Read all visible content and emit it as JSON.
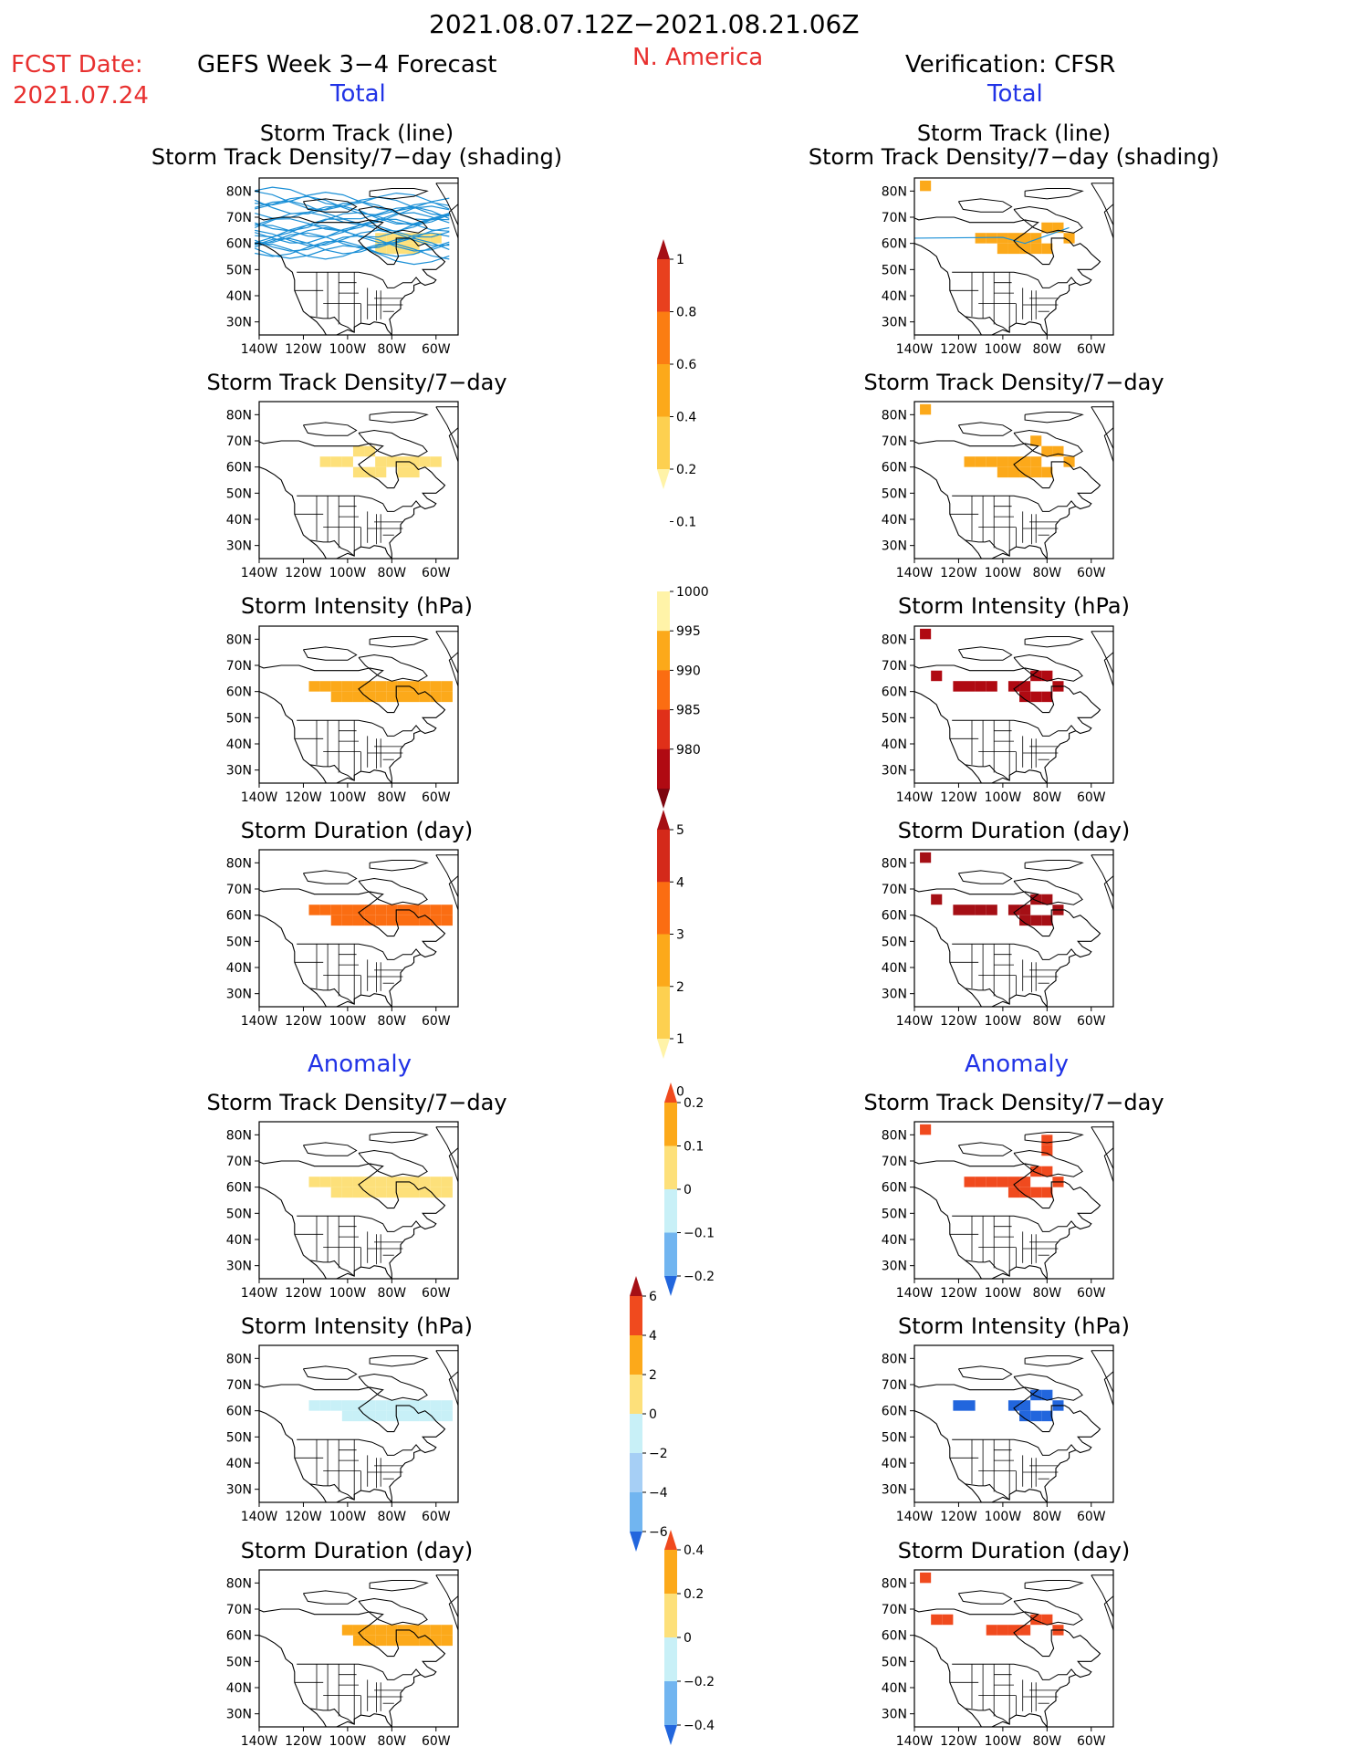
{
  "header": {
    "date_range": "2021.08.07.12Z−2021.08.21.06Z",
    "fcst_label": "FCST Date:",
    "fcst_date": "2021.07.24",
    "left_title": "GEFS Week 3−4 Forecast",
    "region": "N. America",
    "right_title": "Verification: CFSR",
    "total_left": "Total",
    "total_right": "Total",
    "anomaly_left": "Anomaly",
    "anomaly_right": "Anomaly"
  },
  "axes": {
    "lat_ticks": [
      "80N",
      "70N",
      "60N",
      "50N",
      "40N",
      "30N"
    ],
    "lon_ticks": [
      "140W",
      "120W",
      "100W",
      "80W",
      "60W"
    ]
  },
  "panels": [
    {
      "id": "fcst-track",
      "title": "Storm Track (line)",
      "title2": "Storm Track Density/7−day (shading)"
    },
    {
      "id": "cfsr-track",
      "title": "Storm Track (line)",
      "title2": "Storm Track Density/7−day (shading)"
    },
    {
      "id": "fcst-density",
      "title": "Storm Track Density/7−day"
    },
    {
      "id": "cfsr-density",
      "title": "Storm Track Density/7−day"
    },
    {
      "id": "fcst-intensity",
      "title": "Storm Intensity (hPa)"
    },
    {
      "id": "cfsr-intensity",
      "title": "Storm Intensity (hPa)"
    },
    {
      "id": "fcst-duration",
      "title": "Storm Duration (day)"
    },
    {
      "id": "cfsr-duration",
      "title": "Storm Duration (day)"
    },
    {
      "id": "fcst-density-anom",
      "title": "Storm Track Density/7−day"
    },
    {
      "id": "cfsr-density-anom",
      "title": "Storm Track Density/7−day"
    },
    {
      "id": "fcst-intensity-anom",
      "title": "Storm Intensity (hPa)"
    },
    {
      "id": "cfsr-intensity-anom",
      "title": "Storm Intensity (hPa)"
    },
    {
      "id": "fcst-duration-anom",
      "title": "Storm Duration (day)"
    },
    {
      "id": "cfsr-duration-anom",
      "title": "Storm Duration (day)"
    }
  ],
  "colorbars": [
    {
      "id": "density",
      "labels": [
        "1",
        "0.8",
        "0.6",
        "0.4",
        "0.2",
        "0.1"
      ],
      "colors": [
        "#a50f15",
        "#e8401e",
        "#fb7d12",
        "#fca91a",
        "#fdd050",
        "#fff3a8"
      ]
    },
    {
      "id": "intensity",
      "labels": [
        "1000",
        "995",
        "990",
        "985",
        "980"
      ],
      "colors": [
        "#fff3a8",
        "#fca91a",
        "#fb6d12",
        "#e03019",
        "#b00a12",
        "#7d0610"
      ]
    },
    {
      "id": "duration",
      "labels": [
        "5",
        "4",
        "3",
        "2",
        "1",
        "0"
      ],
      "colors": [
        "#a50f15",
        "#d4291a",
        "#fb6d12",
        "#fca91a",
        "#fdd050",
        "#fff3a8"
      ]
    },
    {
      "id": "density-anom",
      "labels": [
        "0.2",
        "0.1",
        "0",
        "−0.1",
        "−0.2"
      ],
      "colors": [
        "#f04a1e",
        "#fca91a",
        "#fde07a",
        "#c8f0f7",
        "#71b5f0",
        "#2266dd"
      ]
    },
    {
      "id": "intensity-anom",
      "labels": [
        "6",
        "4",
        "2",
        "0",
        "−2",
        "−4",
        "−6"
      ],
      "colors": [
        "#a50f15",
        "#f04a1e",
        "#fca91a",
        "#fde07a",
        "#c8f0f7",
        "#a6cff5",
        "#71b5f0",
        "#2266dd"
      ]
    },
    {
      "id": "duration-anom",
      "labels": [
        "0.4",
        "0.2",
        "0",
        "−0.2",
        "−0.4"
      ],
      "colors": [
        "#f04a1e",
        "#fca91a",
        "#fde07a",
        "#c8f0f7",
        "#71b5f0",
        "#2266dd"
      ]
    }
  ],
  "chart_data": {
    "type": "heatmap",
    "lat_range": [
      25,
      85
    ],
    "lon_range": [
      -140,
      -50
    ],
    "note_free": "",
    "fields": [
      {
        "panel": "fcst-track",
        "color": "#fde07a",
        "cells": [
          [
            -85,
            62
          ],
          [
            -80,
            62
          ],
          [
            -75,
            62
          ],
          [
            -70,
            62
          ],
          [
            -65,
            62
          ],
          [
            -60,
            62
          ],
          [
            -85,
            58
          ],
          [
            -80,
            58
          ],
          [
            -75,
            58
          ],
          [
            -70,
            58
          ]
        ]
      },
      {
        "panel": "cfsr-track",
        "color": "#fca91a",
        "cells": [
          [
            -110,
            62
          ],
          [
            -105,
            62
          ],
          [
            -100,
            62
          ],
          [
            -95,
            62
          ],
          [
            -90,
            62
          ],
          [
            -85,
            62
          ],
          [
            -80,
            66
          ],
          [
            -75,
            66
          ],
          [
            -70,
            62
          ],
          [
            -100,
            58
          ],
          [
            -95,
            58
          ],
          [
            -90,
            58
          ],
          [
            -85,
            58
          ],
          [
            -80,
            58
          ],
          [
            -135,
            82
          ]
        ]
      },
      {
        "panel": "fcst-density",
        "color": "#fde07a",
        "cells": [
          [
            -110,
            62
          ],
          [
            -105,
            62
          ],
          [
            -100,
            62
          ],
          [
            -95,
            66
          ],
          [
            -90,
            66
          ],
          [
            -85,
            62
          ],
          [
            -80,
            62
          ],
          [
            -75,
            62
          ],
          [
            -70,
            62
          ],
          [
            -65,
            62
          ],
          [
            -60,
            62
          ],
          [
            -95,
            58
          ],
          [
            -90,
            58
          ],
          [
            -85,
            58
          ],
          [
            -75,
            58
          ],
          [
            -70,
            58
          ]
        ]
      },
      {
        "panel": "cfsr-density",
        "color": "#fca91a",
        "cells": [
          [
            -115,
            62
          ],
          [
            -110,
            62
          ],
          [
            -105,
            62
          ],
          [
            -100,
            62
          ],
          [
            -95,
            62
          ],
          [
            -90,
            62
          ],
          [
            -85,
            62
          ],
          [
            -80,
            66
          ],
          [
            -75,
            66
          ],
          [
            -70,
            62
          ],
          [
            -100,
            58
          ],
          [
            -95,
            58
          ],
          [
            -90,
            58
          ],
          [
            -85,
            58
          ],
          [
            -80,
            58
          ],
          [
            -135,
            82
          ],
          [
            -85,
            70
          ]
        ]
      },
      {
        "panel": "fcst-intensity",
        "color": "#fca91a",
        "cells": [
          [
            -115,
            62
          ],
          [
            -110,
            62
          ],
          [
            -105,
            62
          ],
          [
            -100,
            62
          ],
          [
            -95,
            62
          ],
          [
            -90,
            62
          ],
          [
            -85,
            62
          ],
          [
            -80,
            62
          ],
          [
            -75,
            62
          ],
          [
            -70,
            62
          ],
          [
            -65,
            62
          ],
          [
            -60,
            62
          ],
          [
            -55,
            62
          ],
          [
            -105,
            58
          ],
          [
            -100,
            58
          ],
          [
            -95,
            58
          ],
          [
            -90,
            58
          ],
          [
            -85,
            58
          ],
          [
            -80,
            58
          ],
          [
            -75,
            58
          ],
          [
            -70,
            58
          ],
          [
            -65,
            58
          ],
          [
            -60,
            58
          ],
          [
            -55,
            58
          ]
        ]
      },
      {
        "panel": "cfsr-intensity",
        "color": "#b00a12",
        "cells": [
          [
            -95,
            62
          ],
          [
            -90,
            62
          ],
          [
            -85,
            66
          ],
          [
            -80,
            66
          ],
          [
            -75,
            62
          ],
          [
            -90,
            58
          ],
          [
            -85,
            58
          ],
          [
            -80,
            58
          ],
          [
            -120,
            62
          ],
          [
            -115,
            62
          ],
          [
            -110,
            62
          ],
          [
            -105,
            62
          ],
          [
            -135,
            82
          ],
          [
            -130,
            66
          ]
        ]
      },
      {
        "panel": "fcst-duration",
        "color": "#fb6d12",
        "cells": [
          [
            -115,
            62
          ],
          [
            -110,
            62
          ],
          [
            -105,
            62
          ],
          [
            -100,
            62
          ],
          [
            -95,
            62
          ],
          [
            -90,
            62
          ],
          [
            -85,
            62
          ],
          [
            -80,
            62
          ],
          [
            -75,
            62
          ],
          [
            -70,
            62
          ],
          [
            -65,
            62
          ],
          [
            -60,
            62
          ],
          [
            -55,
            62
          ],
          [
            -105,
            58
          ],
          [
            -100,
            58
          ],
          [
            -95,
            58
          ],
          [
            -90,
            58
          ],
          [
            -85,
            58
          ],
          [
            -80,
            58
          ],
          [
            -75,
            58
          ],
          [
            -70,
            58
          ],
          [
            -65,
            58
          ],
          [
            -60,
            58
          ],
          [
            -55,
            58
          ]
        ]
      },
      {
        "panel": "cfsr-duration",
        "color": "#a50f15",
        "cells": [
          [
            -95,
            62
          ],
          [
            -90,
            62
          ],
          [
            -85,
            66
          ],
          [
            -80,
            66
          ],
          [
            -75,
            62
          ],
          [
            -90,
            58
          ],
          [
            -85,
            58
          ],
          [
            -80,
            58
          ],
          [
            -120,
            62
          ],
          [
            -115,
            62
          ],
          [
            -110,
            62
          ],
          [
            -105,
            62
          ],
          [
            -135,
            82
          ],
          [
            -130,
            66
          ]
        ]
      },
      {
        "panel": "fcst-density-anom",
        "color": "#fde07a",
        "cells": [
          [
            -115,
            62
          ],
          [
            -110,
            62
          ],
          [
            -105,
            62
          ],
          [
            -100,
            62
          ],
          [
            -95,
            62
          ],
          [
            -90,
            62
          ],
          [
            -85,
            62
          ],
          [
            -80,
            62
          ],
          [
            -75,
            62
          ],
          [
            -70,
            62
          ],
          [
            -65,
            62
          ],
          [
            -60,
            62
          ],
          [
            -55,
            62
          ],
          [
            -105,
            58
          ],
          [
            -100,
            58
          ],
          [
            -95,
            58
          ],
          [
            -90,
            58
          ],
          [
            -85,
            58
          ],
          [
            -80,
            58
          ],
          [
            -75,
            58
          ],
          [
            -70,
            58
          ],
          [
            -65,
            58
          ],
          [
            -60,
            58
          ],
          [
            -55,
            58
          ]
        ]
      },
      {
        "panel": "cfsr-density-anom",
        "color": "#f04a1e",
        "cells": [
          [
            -115,
            62
          ],
          [
            -110,
            62
          ],
          [
            -105,
            62
          ],
          [
            -100,
            62
          ],
          [
            -95,
            62
          ],
          [
            -90,
            62
          ],
          [
            -85,
            66
          ],
          [
            -80,
            66
          ],
          [
            -75,
            62
          ],
          [
            -95,
            58
          ],
          [
            -90,
            58
          ],
          [
            -85,
            58
          ],
          [
            -80,
            58
          ],
          [
            -80,
            74
          ],
          [
            -80,
            78
          ],
          [
            -135,
            82
          ]
        ]
      },
      {
        "panel": "fcst-intensity-anom",
        "color": "#c8f0f7",
        "cells": [
          [
            -115,
            62
          ],
          [
            -110,
            62
          ],
          [
            -105,
            62
          ],
          [
            -100,
            62
          ],
          [
            -95,
            62
          ],
          [
            -90,
            62
          ],
          [
            -85,
            62
          ],
          [
            -80,
            62
          ],
          [
            -75,
            62
          ],
          [
            -70,
            62
          ],
          [
            -65,
            62
          ],
          [
            -60,
            62
          ],
          [
            -55,
            62
          ],
          [
            -100,
            58
          ],
          [
            -95,
            58
          ],
          [
            -90,
            58
          ],
          [
            -85,
            58
          ],
          [
            -80,
            58
          ],
          [
            -75,
            58
          ],
          [
            -70,
            58
          ],
          [
            -65,
            58
          ],
          [
            -60,
            58
          ],
          [
            -55,
            58
          ]
        ]
      },
      {
        "panel": "cfsr-intensity-anom",
        "color": "#2266dd",
        "cells": [
          [
            -95,
            62
          ],
          [
            -90,
            62
          ],
          [
            -85,
            66
          ],
          [
            -80,
            66
          ],
          [
            -75,
            62
          ],
          [
            -90,
            58
          ],
          [
            -85,
            58
          ],
          [
            -80,
            58
          ],
          [
            -120,
            62
          ],
          [
            -115,
            62
          ]
        ]
      },
      {
        "panel": "fcst-duration-anom",
        "color": "#fca91a",
        "cells": [
          [
            -100,
            62
          ],
          [
            -95,
            62
          ],
          [
            -90,
            62
          ],
          [
            -85,
            62
          ],
          [
            -80,
            62
          ],
          [
            -75,
            62
          ],
          [
            -70,
            62
          ],
          [
            -65,
            62
          ],
          [
            -60,
            62
          ],
          [
            -55,
            62
          ],
          [
            -95,
            58
          ],
          [
            -90,
            58
          ],
          [
            -85,
            58
          ],
          [
            -80,
            58
          ],
          [
            -75,
            58
          ],
          [
            -70,
            58
          ],
          [
            -65,
            58
          ],
          [
            -60,
            58
          ],
          [
            -55,
            58
          ]
        ]
      },
      {
        "panel": "cfsr-duration-anom",
        "color": "#f04a1e",
        "cells": [
          [
            -105,
            62
          ],
          [
            -100,
            62
          ],
          [
            -95,
            62
          ],
          [
            -90,
            62
          ],
          [
            -85,
            66
          ],
          [
            -80,
            66
          ],
          [
            -75,
            62
          ],
          [
            -130,
            66
          ],
          [
            -125,
            66
          ],
          [
            -135,
            82
          ]
        ]
      }
    ]
  }
}
